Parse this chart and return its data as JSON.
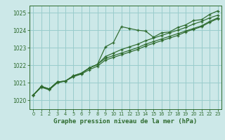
{
  "title": "Graphe pression niveau de la mer (hPa)",
  "bg_color": "#cce8e8",
  "grid_color": "#99cccc",
  "line_color": "#2d6a2d",
  "spine_color": "#2d6a2d",
  "xlim": [
    -0.5,
    23.5
  ],
  "ylim": [
    1019.5,
    1025.4
  ],
  "yticks": [
    1020,
    1021,
    1022,
    1023,
    1024,
    1025
  ],
  "xticks": [
    0,
    1,
    2,
    3,
    4,
    5,
    6,
    7,
    8,
    9,
    10,
    11,
    12,
    13,
    14,
    15,
    16,
    17,
    18,
    19,
    20,
    21,
    22,
    23
  ],
  "series": [
    [
      1020.3,
      1020.8,
      1020.65,
      1021.05,
      1021.1,
      1021.4,
      1021.55,
      1021.85,
      1022.05,
      1023.05,
      1023.3,
      1024.2,
      1024.1,
      1024.0,
      1023.95,
      1023.6,
      1023.85,
      1023.9,
      1024.15,
      1024.3,
      1024.55,
      1024.6,
      1024.9,
      1025.1
    ],
    [
      1020.3,
      1020.8,
      1020.65,
      1021.05,
      1021.1,
      1021.4,
      1021.55,
      1021.85,
      1022.05,
      1022.5,
      1022.7,
      1022.9,
      1023.05,
      1023.2,
      1023.4,
      1023.55,
      1023.7,
      1023.85,
      1024.0,
      1024.15,
      1024.35,
      1024.5,
      1024.7,
      1024.85
    ],
    [
      1020.3,
      1020.8,
      1020.65,
      1021.05,
      1021.1,
      1021.4,
      1021.55,
      1021.85,
      1022.05,
      1022.4,
      1022.55,
      1022.7,
      1022.85,
      1023.0,
      1023.2,
      1023.35,
      1023.5,
      1023.65,
      1023.8,
      1023.95,
      1024.1,
      1024.25,
      1024.5,
      1024.7
    ],
    [
      1020.3,
      1020.75,
      1020.6,
      1021.0,
      1021.1,
      1021.35,
      1021.5,
      1021.75,
      1021.95,
      1022.3,
      1022.45,
      1022.6,
      1022.75,
      1022.9,
      1023.1,
      1023.25,
      1023.4,
      1023.55,
      1023.7,
      1023.9,
      1024.05,
      1024.2,
      1024.45,
      1024.65
    ]
  ],
  "title_fontsize": 6.5,
  "tick_labelsize": 5.5,
  "xlabel_bottom_pad": 2
}
